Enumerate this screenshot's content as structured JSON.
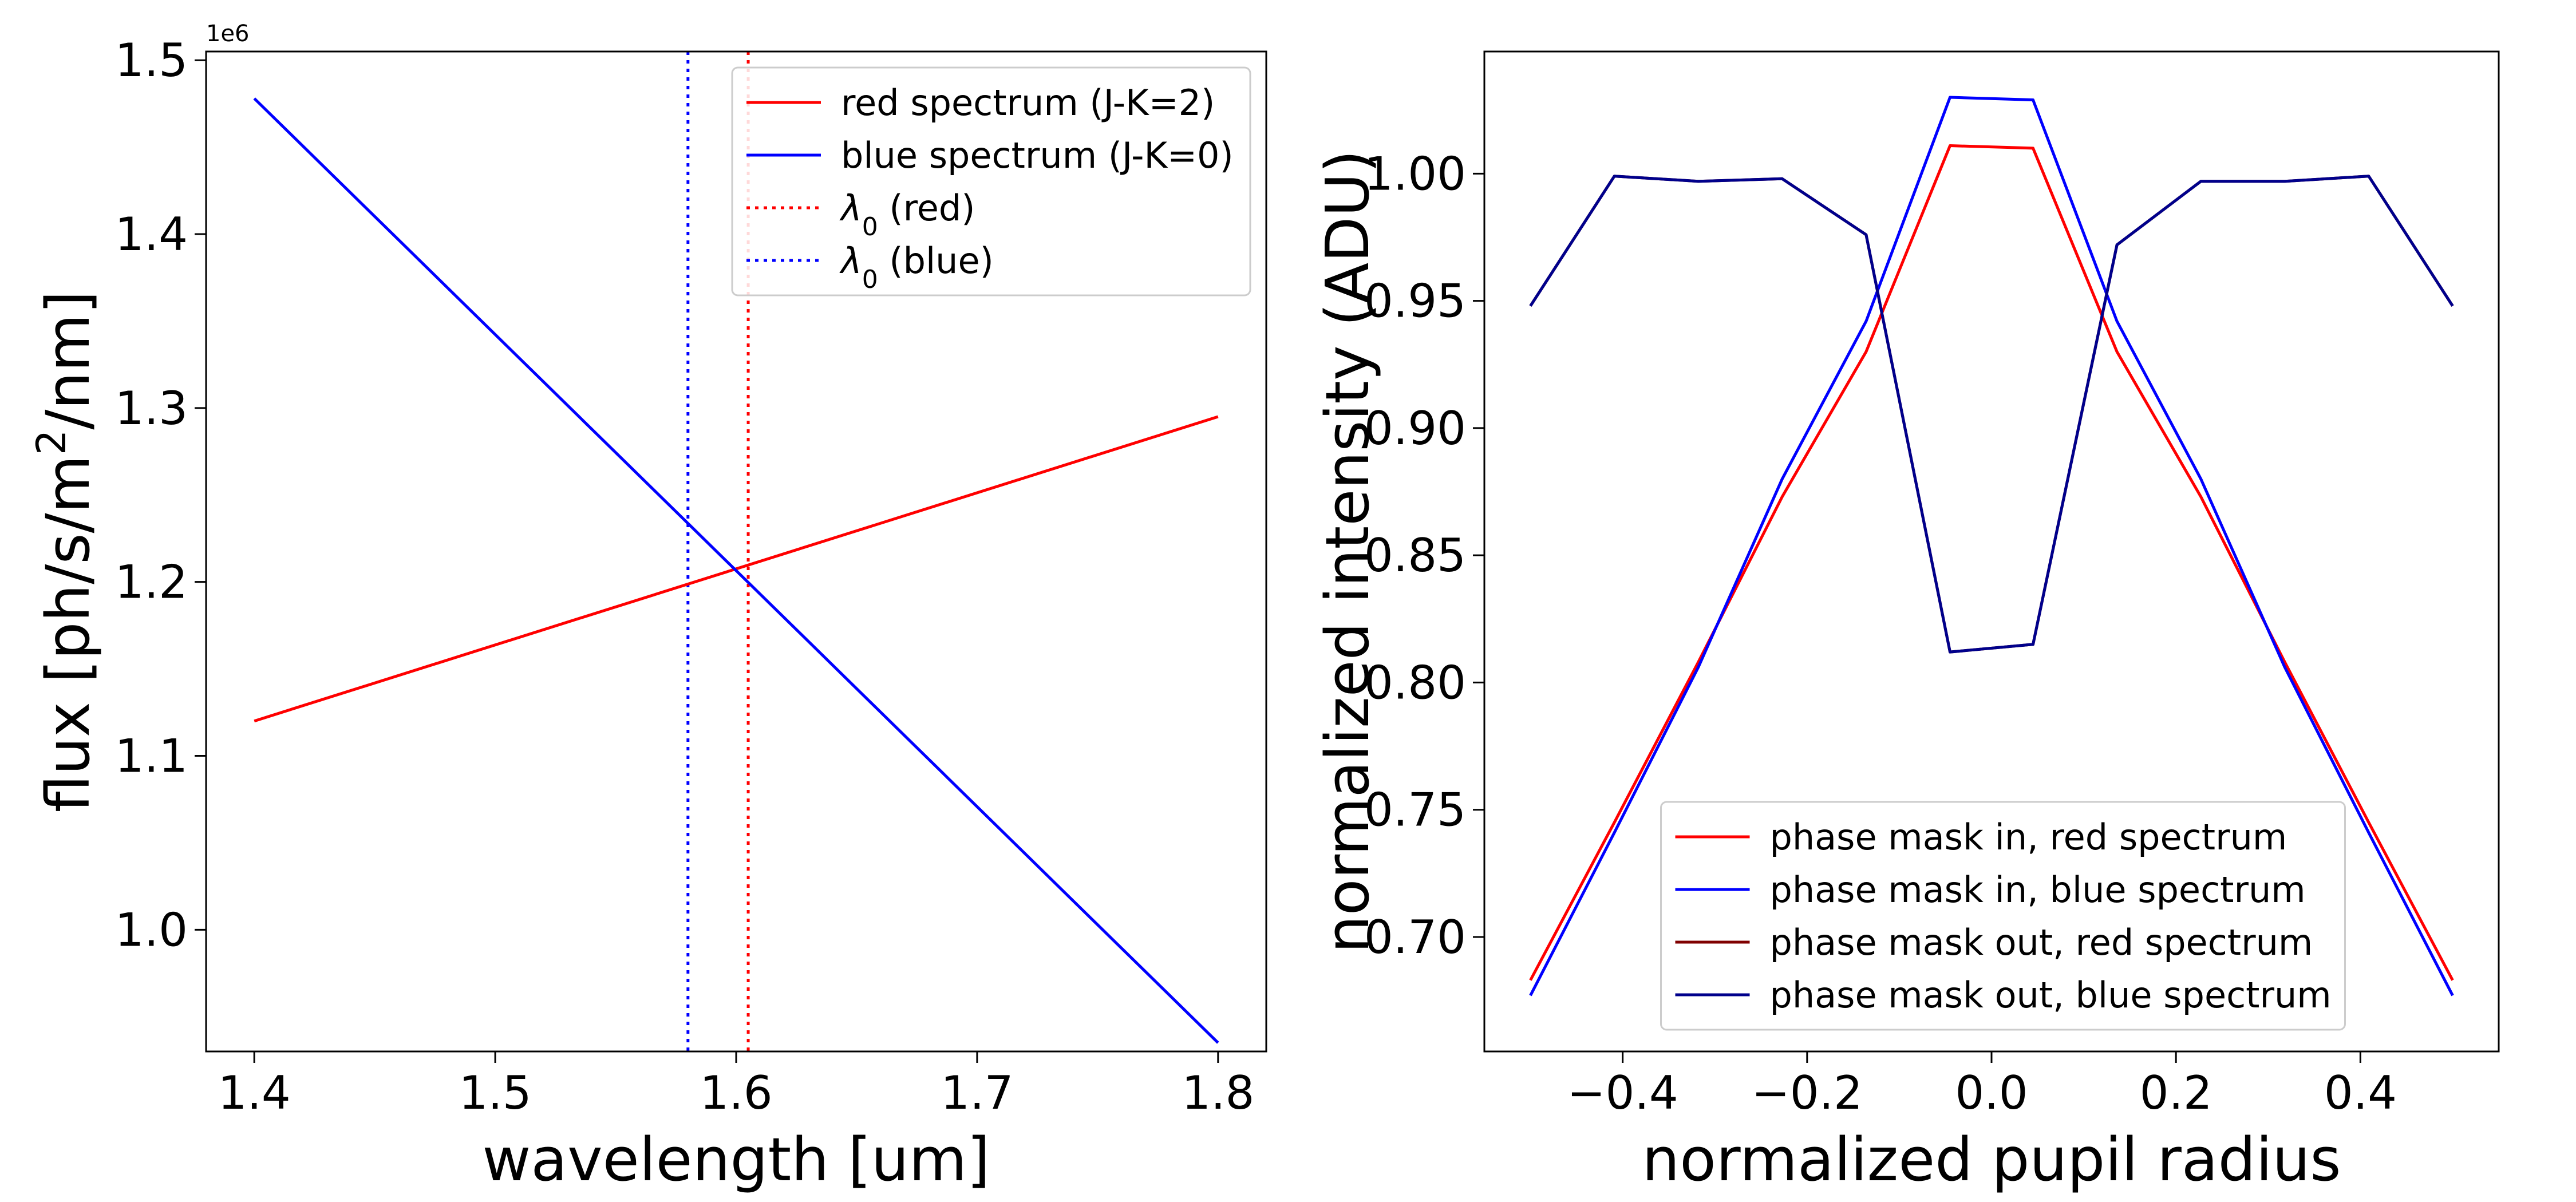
{
  "colors": {
    "red": "#ff0000",
    "blue": "#0000ff",
    "darkred": "#800000",
    "darkblue": "#00008b"
  },
  "chart_data": [
    {
      "type": "line",
      "xlabel": "wavelength [um]",
      "ylabel": "flux [ph/s/m²/nm]",
      "y_offset_text": "1e6",
      "xlim": [
        1.38,
        1.82
      ],
      "ylim": [
        0.93,
        1.505
      ],
      "xticks": [
        1.4,
        1.5,
        1.6,
        1.7,
        1.8
      ],
      "xtick_labels": [
        "1.4",
        "1.5",
        "1.6",
        "1.7",
        "1.8"
      ],
      "yticks": [
        1.0,
        1.1,
        1.2,
        1.3,
        1.4,
        1.5
      ],
      "ytick_labels": [
        "1.0",
        "1.1",
        "1.2",
        "1.3",
        "1.4",
        "1.5"
      ],
      "grid": false,
      "legend_position": "top-right",
      "series": [
        {
          "name": "red spectrum (J-K=2)",
          "color": "red",
          "style": "solid",
          "x": [
            1.4,
            1.8
          ],
          "y": [
            1.12,
            1.295
          ]
        },
        {
          "name": "blue spectrum (J-K=0)",
          "color": "blue",
          "style": "solid",
          "x": [
            1.4,
            1.8
          ],
          "y": [
            1.478,
            0.935
          ]
        }
      ],
      "vlines": [
        {
          "name_prefix": "λ",
          "name_sub": "0",
          "name_suffix": " (red)",
          "color": "red",
          "style": "dotted",
          "x": 1.605
        },
        {
          "name_prefix": "λ",
          "name_sub": "0",
          "name_suffix": " (blue)",
          "color": "blue",
          "style": "dotted",
          "x": 1.58
        }
      ]
    },
    {
      "type": "line",
      "xlabel": "normalized pupil radius",
      "ylabel": "normalized intensity (ADU)",
      "xlim": [
        -0.55,
        0.55
      ],
      "ylim": [
        0.655,
        1.048
      ],
      "xticks": [
        -0.4,
        -0.2,
        0.0,
        0.2,
        0.4
      ],
      "xtick_labels": [
        "−0.4",
        "−0.2",
        "0.0",
        "0.2",
        "0.4"
      ],
      "yticks": [
        0.7,
        0.75,
        0.8,
        0.85,
        0.9,
        0.95,
        1.0
      ],
      "ytick_labels": [
        "0.70",
        "0.75",
        "0.80",
        "0.85",
        "0.90",
        "0.95",
        "1.00"
      ],
      "grid": false,
      "legend_position": "lower-center",
      "series": [
        {
          "name": "phase mask in, red spectrum",
          "color": "red",
          "x": [
            -0.5,
            -0.409,
            -0.318,
            -0.227,
            -0.136,
            -0.045,
            0.045,
            0.136,
            0.227,
            0.318,
            0.409,
            0.5
          ],
          "y": [
            0.683,
            0.745,
            0.808,
            0.873,
            0.93,
            1.011,
            1.01,
            0.93,
            0.873,
            0.808,
            0.745,
            0.683
          ]
        },
        {
          "name": "phase mask in, blue spectrum",
          "color": "blue",
          "x": [
            -0.5,
            -0.409,
            -0.318,
            -0.227,
            -0.136,
            -0.045,
            0.045,
            0.136,
            0.227,
            0.318,
            0.409,
            0.5
          ],
          "y": [
            0.677,
            0.741,
            0.806,
            0.88,
            0.942,
            1.03,
            1.029,
            0.942,
            0.88,
            0.806,
            0.741,
            0.677
          ]
        },
        {
          "name": "phase mask out, red spectrum",
          "color": "darkred",
          "x": [
            -0.5,
            -0.409,
            -0.318,
            -0.227,
            -0.136,
            -0.045,
            0.045,
            0.136,
            0.227,
            0.318,
            0.409,
            0.5
          ],
          "y": [
            0.948,
            0.999,
            0.997,
            0.998,
            0.976,
            0.812,
            0.815,
            0.972,
            0.997,
            0.997,
            0.999,
            0.948
          ]
        },
        {
          "name": "phase mask out, blue spectrum",
          "color": "darkblue",
          "x": [
            -0.5,
            -0.409,
            -0.318,
            -0.227,
            -0.136,
            -0.045,
            0.045,
            0.136,
            0.227,
            0.318,
            0.409,
            0.5
          ],
          "y": [
            0.948,
            0.999,
            0.997,
            0.998,
            0.976,
            0.812,
            0.815,
            0.972,
            0.997,
            0.997,
            0.999,
            0.948
          ]
        }
      ]
    }
  ]
}
